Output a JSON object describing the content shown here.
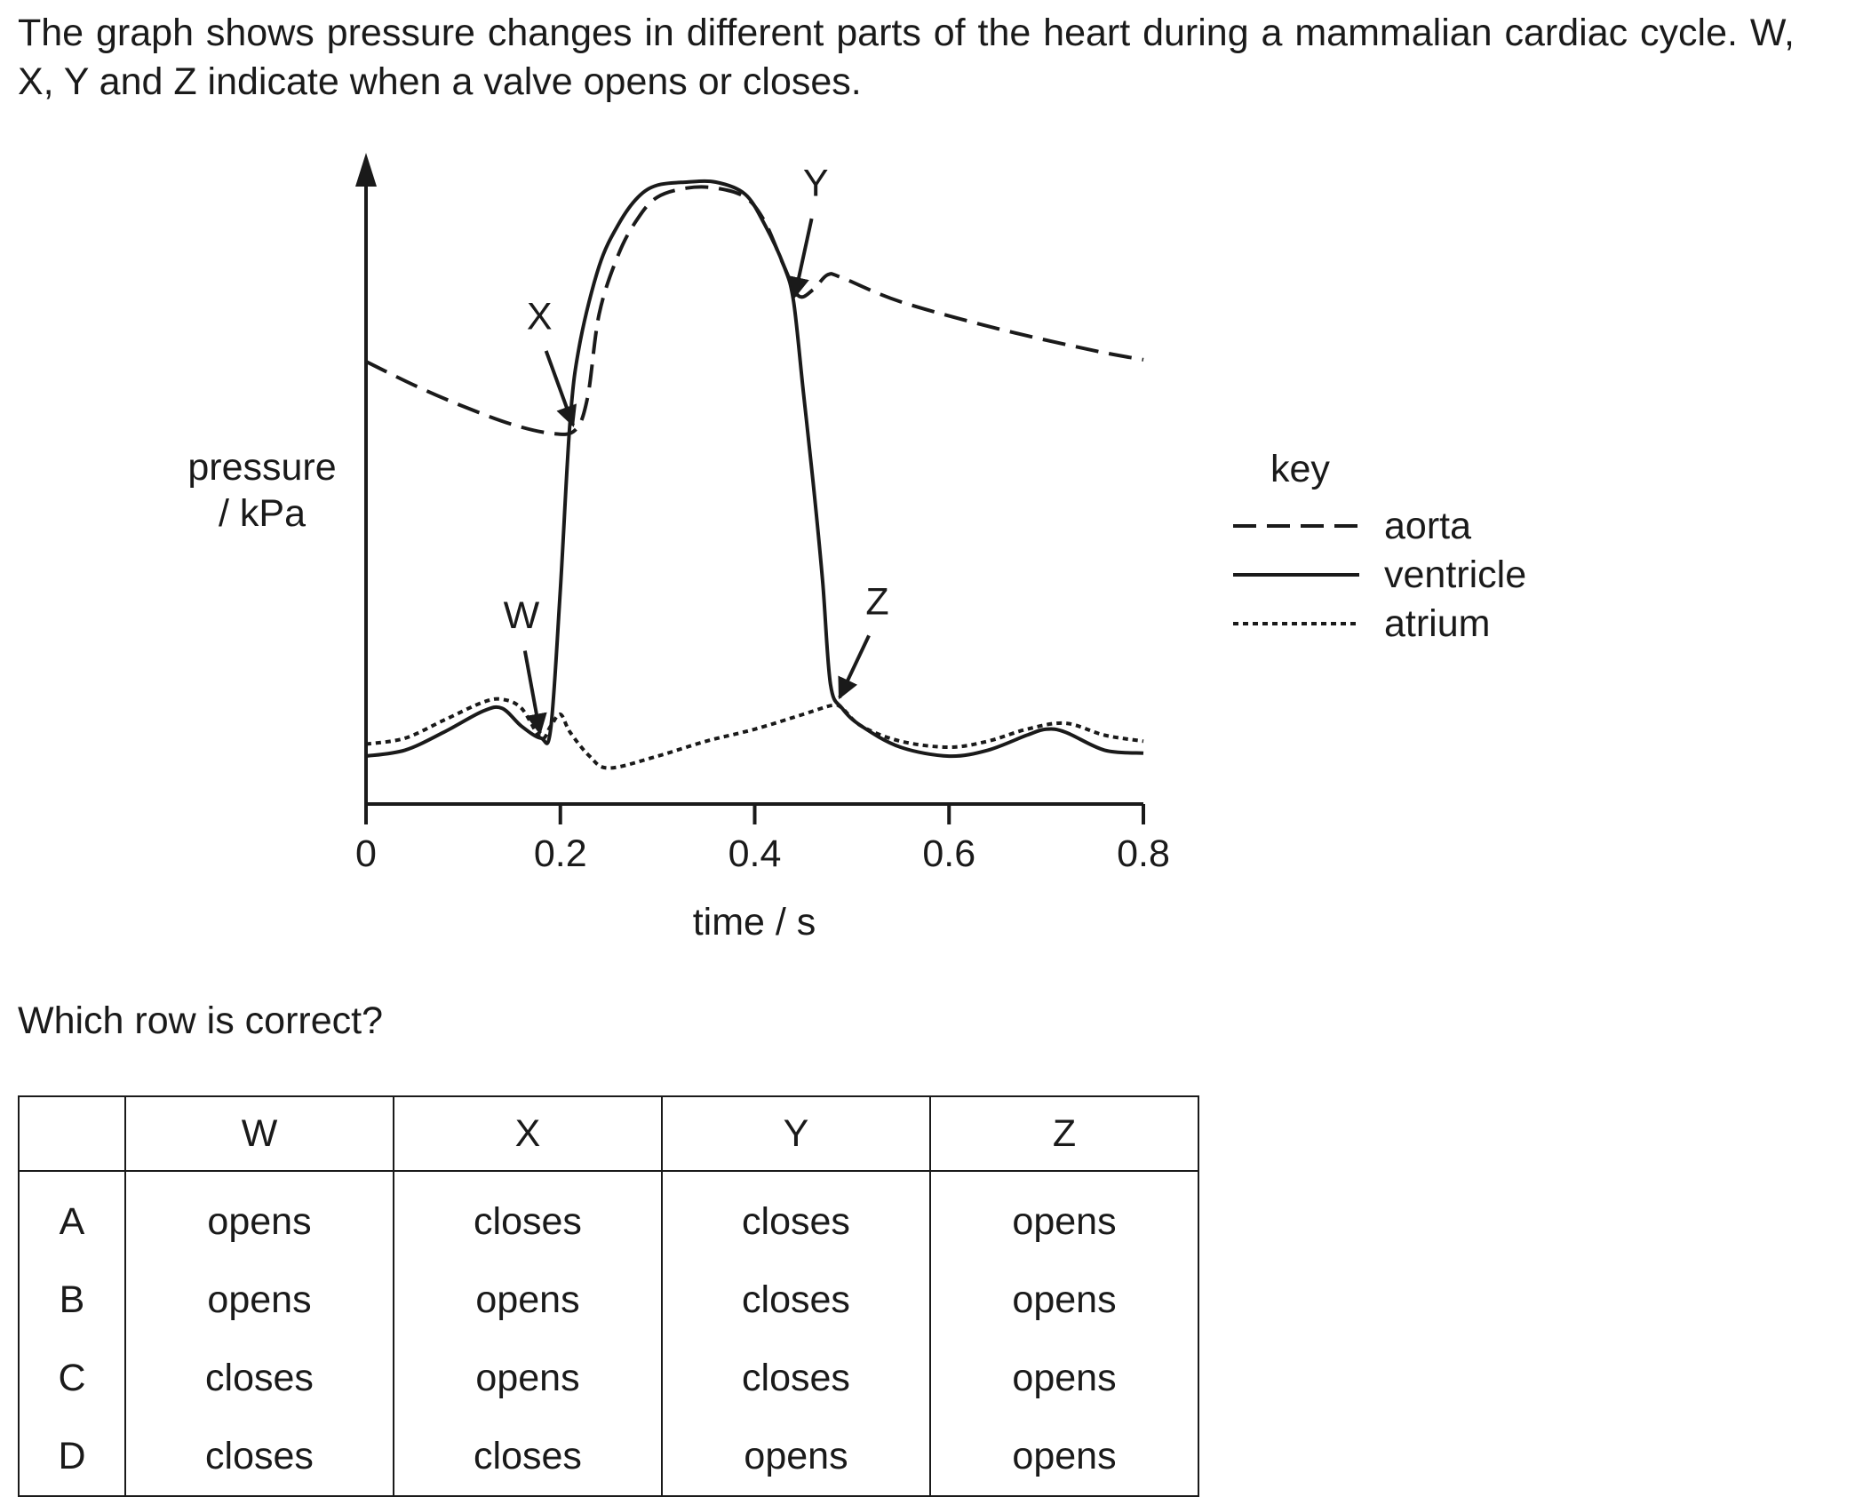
{
  "question": {
    "intro": "The graph shows pressure changes in different parts of the heart during a mammalian cardiac cycle. W, X, Y and Z indicate when a valve opens or closes.",
    "prompt": "Which row is correct?"
  },
  "chart_data": {
    "type": "line",
    "title": "",
    "xlabel": "time / s",
    "ylabel_line1": "pressure",
    "ylabel_line2": "/ kPa",
    "xlim": [
      0,
      0.8
    ],
    "x_ticks": [
      "0",
      "0.2",
      "0.4",
      "0.6",
      "0.8"
    ],
    "x_tick_values": [
      0,
      0.2,
      0.4,
      0.6,
      0.8
    ],
    "y_unit_note": "relative pressure, axis not numbered (0 to 100)",
    "ylim": [
      0,
      100
    ],
    "grid": false,
    "legend_title": "key",
    "legend_position": "right",
    "series": [
      {
        "name": "aorta",
        "style": "dashed",
        "points": [
          [
            0,
            70
          ],
          [
            0.05,
            66
          ],
          [
            0.1,
            62.5
          ],
          [
            0.15,
            59.5
          ],
          [
            0.19,
            58
          ],
          [
            0.215,
            58.5
          ],
          [
            0.228,
            64
          ],
          [
            0.24,
            78
          ],
          [
            0.26,
            88
          ],
          [
            0.28,
            94
          ],
          [
            0.3,
            97.5
          ],
          [
            0.33,
            99
          ],
          [
            0.36,
            99
          ],
          [
            0.39,
            97.5
          ],
          [
            0.41,
            93.5
          ],
          [
            0.43,
            86
          ],
          [
            0.445,
            81
          ],
          [
            0.46,
            82
          ],
          [
            0.475,
            84.5
          ],
          [
            0.49,
            84
          ],
          [
            0.55,
            80
          ],
          [
            0.65,
            75.5
          ],
          [
            0.75,
            71.8
          ],
          [
            0.8,
            70.3
          ]
        ]
      },
      {
        "name": "ventricle",
        "style": "solid",
        "points": [
          [
            0,
            4
          ],
          [
            0.04,
            5
          ],
          [
            0.08,
            8
          ],
          [
            0.12,
            11.5
          ],
          [
            0.14,
            12
          ],
          [
            0.16,
            9
          ],
          [
            0.18,
            7
          ],
          [
            0.19,
            8.5
          ],
          [
            0.2,
            32
          ],
          [
            0.21,
            60
          ],
          [
            0.22,
            73
          ],
          [
            0.24,
            86
          ],
          [
            0.26,
            93
          ],
          [
            0.28,
            97.5
          ],
          [
            0.3,
            99.5
          ],
          [
            0.33,
            100
          ],
          [
            0.36,
            100
          ],
          [
            0.39,
            98
          ],
          [
            0.41,
            93
          ],
          [
            0.43,
            86
          ],
          [
            0.44,
            80
          ],
          [
            0.45,
            65
          ],
          [
            0.46,
            50
          ],
          [
            0.47,
            33
          ],
          [
            0.478,
            16
          ],
          [
            0.49,
            12
          ],
          [
            0.51,
            9
          ],
          [
            0.55,
            5.5
          ],
          [
            0.6,
            4
          ],
          [
            0.64,
            5
          ],
          [
            0.68,
            7.5
          ],
          [
            0.7,
            8.5
          ],
          [
            0.72,
            8
          ],
          [
            0.76,
            5
          ],
          [
            0.8,
            4.5
          ]
        ]
      },
      {
        "name": "atrium",
        "style": "dotted",
        "points": [
          [
            0,
            6
          ],
          [
            0.04,
            7
          ],
          [
            0.08,
            10
          ],
          [
            0.12,
            13
          ],
          [
            0.14,
            13.5
          ],
          [
            0.16,
            12
          ],
          [
            0.18,
            7
          ],
          [
            0.19,
            9
          ],
          [
            0.2,
            11
          ],
          [
            0.21,
            8
          ],
          [
            0.23,
            4
          ],
          [
            0.25,
            2
          ],
          [
            0.3,
            4
          ],
          [
            0.35,
            6.5
          ],
          [
            0.4,
            8.5
          ],
          [
            0.45,
            11
          ],
          [
            0.48,
            12.5
          ],
          [
            0.49,
            12
          ],
          [
            0.51,
            9
          ],
          [
            0.55,
            6.5
          ],
          [
            0.6,
            5.5
          ],
          [
            0.64,
            6.5
          ],
          [
            0.68,
            8.5
          ],
          [
            0.72,
            9.5
          ],
          [
            0.76,
            7.5
          ],
          [
            0.8,
            6.5
          ]
        ]
      }
    ],
    "annotations": [
      {
        "label": "W",
        "x": 0.18,
        "y": 7
      },
      {
        "label": "X",
        "x": 0.215,
        "y": 58.5
      },
      {
        "label": "Y",
        "x": 0.44,
        "y": 80
      },
      {
        "label": "Z",
        "x": 0.485,
        "y": 13
      }
    ]
  },
  "table": {
    "headers": [
      "",
      "W",
      "X",
      "Y",
      "Z"
    ],
    "rows": [
      {
        "letter": "A",
        "cells": [
          "opens",
          "closes",
          "closes",
          "opens"
        ]
      },
      {
        "letter": "B",
        "cells": [
          "opens",
          "opens",
          "closes",
          "opens"
        ]
      },
      {
        "letter": "C",
        "cells": [
          "closes",
          "opens",
          "closes",
          "opens"
        ]
      },
      {
        "letter": "D",
        "cells": [
          "closes",
          "closes",
          "opens",
          "opens"
        ]
      }
    ]
  }
}
